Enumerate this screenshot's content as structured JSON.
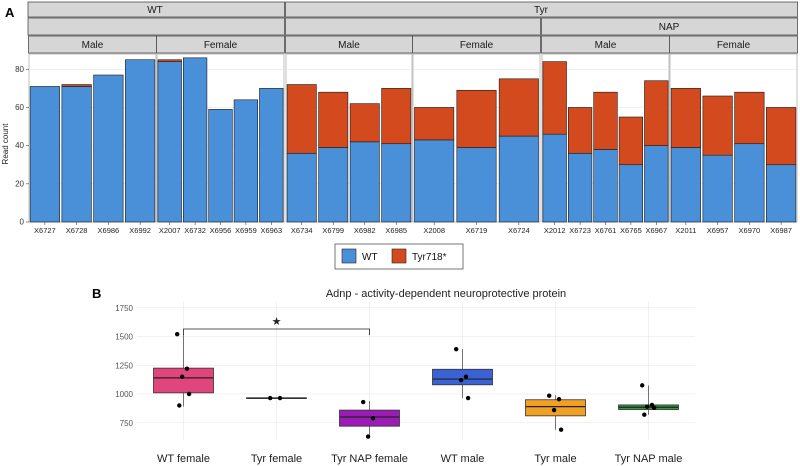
{
  "chart_data": [
    {
      "type": "bar",
      "panel_label": "A",
      "ylabel": "Read count",
      "ylim": [
        0,
        88
      ],
      "yticks": [
        0,
        20,
        40,
        60,
        80
      ],
      "top_strips": [
        "WT",
        "Tyr"
      ],
      "mid_strips": [
        "NAP"
      ],
      "legend": [
        {
          "name": "WT",
          "color": "#4a90d9"
        },
        {
          "name": "Tyr718*",
          "color": "#d24a1e"
        }
      ],
      "facets": [
        {
          "genotype": "WT",
          "treatment": "",
          "sex": "Male",
          "samples": [
            {
              "id": "X6727",
              "wt": 71,
              "mut": 0
            },
            {
              "id": "X6728",
              "wt": 71,
              "mut": 1
            },
            {
              "id": "X6986",
              "wt": 77,
              "mut": 0
            },
            {
              "id": "X6992",
              "wt": 85,
              "mut": 0
            }
          ]
        },
        {
          "genotype": "WT",
          "treatment": "",
          "sex": "Female",
          "samples": [
            {
              "id": "X2007",
              "wt": 84,
              "mut": 1
            },
            {
              "id": "X6732",
              "wt": 86,
              "mut": 0
            },
            {
              "id": "X6956",
              "wt": 59,
              "mut": 0
            },
            {
              "id": "X6959",
              "wt": 64,
              "mut": 0
            },
            {
              "id": "X6963",
              "wt": 70,
              "mut": 0
            }
          ]
        },
        {
          "genotype": "Tyr",
          "treatment": "",
          "sex": "Male",
          "samples": [
            {
              "id": "X6734",
              "wt": 36,
              "mut": 36
            },
            {
              "id": "X6799",
              "wt": 39,
              "mut": 29
            },
            {
              "id": "X6982",
              "wt": 42,
              "mut": 20
            },
            {
              "id": "X6985",
              "wt": 41,
              "mut": 29
            }
          ]
        },
        {
          "genotype": "Tyr",
          "treatment": "",
          "sex": "Female",
          "samples": [
            {
              "id": "X2008",
              "wt": 43,
              "mut": 17
            },
            {
              "id": "X6719",
              "wt": 39,
              "mut": 30
            },
            {
              "id": "X6724",
              "wt": 45,
              "mut": 30
            }
          ]
        },
        {
          "genotype": "Tyr",
          "treatment": "NAP",
          "sex": "Male",
          "samples": [
            {
              "id": "X2012",
              "wt": 46,
              "mut": 38
            },
            {
              "id": "X6723",
              "wt": 36,
              "mut": 24
            },
            {
              "id": "X6761",
              "wt": 38,
              "mut": 30
            },
            {
              "id": "X6765",
              "wt": 30,
              "mut": 25
            },
            {
              "id": "X6967",
              "wt": 40,
              "mut": 34
            }
          ]
        },
        {
          "genotype": "Tyr",
          "treatment": "NAP",
          "sex": "Female",
          "samples": [
            {
              "id": "X2011",
              "wt": 39,
              "mut": 31
            },
            {
              "id": "X6957",
              "wt": 35,
              "mut": 31
            },
            {
              "id": "X6970",
              "wt": 41,
              "mut": 27
            },
            {
              "id": "X6987",
              "wt": 30,
              "mut": 30
            }
          ]
        }
      ]
    },
    {
      "type": "box",
      "panel_label": "B",
      "title": "Adnp - activity-dependent neuroprotective protein",
      "ylim": [
        600,
        1800
      ],
      "yticks": [
        750,
        1000,
        1250,
        1500,
        1750
      ],
      "significance": {
        "from": "WT female",
        "to": "Tyr NAP female",
        "label": "★"
      },
      "groups": [
        {
          "name": "WT female",
          "color": "#e0457b",
          "q1": 1010,
          "median": 1140,
          "q3": 1225,
          "whisker_low": 890,
          "whisker_high": 1520,
          "points": [
            1520,
            1220,
            1150,
            1000,
            900
          ]
        },
        {
          "name": "Tyr female",
          "color": "#b0b0b0",
          "q1": 965,
          "median": 965,
          "q3": 965,
          "whisker_low": 965,
          "whisker_high": 965,
          "points": [
            965,
            965
          ]
        },
        {
          "name": "Tyr NAP female",
          "color": "#9b1cb5",
          "q1": 720,
          "median": 800,
          "q3": 860,
          "whisker_low": 625,
          "whisker_high": 940,
          "points": [
            930,
            790,
            630
          ]
        },
        {
          "name": "WT male",
          "color": "#3b62d4",
          "q1": 1080,
          "median": 1130,
          "q3": 1215,
          "whisker_low": 965,
          "whisker_high": 1390,
          "points": [
            1390,
            1150,
            1120,
            965
          ]
        },
        {
          "name": "Tyr male",
          "color": "#f0a022",
          "q1": 810,
          "median": 890,
          "q3": 950,
          "whisker_low": 690,
          "whisker_high": 990,
          "points": [
            985,
            955,
            860,
            690
          ]
        },
        {
          "name": "Tyr NAP male",
          "color": "#2e9a3a",
          "q1": 865,
          "median": 885,
          "q3": 905,
          "whisker_low": 820,
          "whisker_high": 1075,
          "points": [
            1075,
            905,
            890,
            880,
            820
          ]
        }
      ]
    }
  ]
}
